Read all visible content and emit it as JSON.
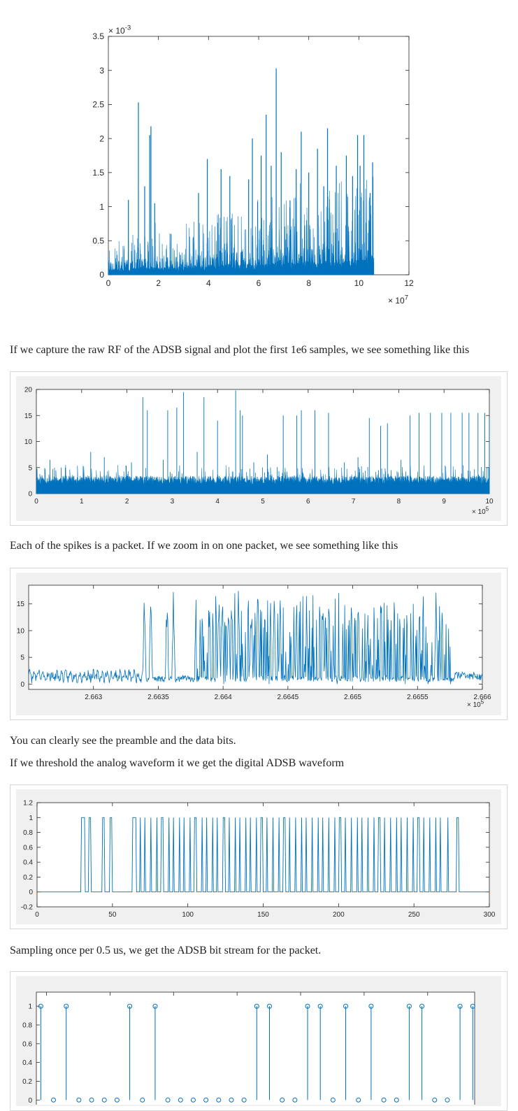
{
  "page": {
    "paragraphs": [
      "If we capture the raw RF of the ADSB signal and plot the first 1e6 samples, we see something like this",
      "Each of the spikes is a packet. If we zoom in on one packet, we see something like this",
      "You can clearly see the preamble and the data bits.",
      "If we threshold the analog waveform it we get the digital ADSB waveform",
      "Sampling once per 0.5 us, we get the ADSB bit stream for the packet."
    ]
  },
  "colors": {
    "series": "#0072bd",
    "axis": "#262626",
    "panel_bg": "#f0f0f0",
    "panel_border": "#d6d6d6",
    "text": "#222222"
  },
  "chart_data": [
    {
      "type": "area",
      "xlim": [
        0,
        12
      ],
      "ylim": [
        0,
        3.5
      ],
      "x_exponent": "10^7",
      "y_exponent": "10^-3",
      "x_ticks": [
        "0",
        "2",
        "4",
        "6",
        "8",
        "10",
        "12"
      ],
      "y_ticks": [
        "0",
        "0.5",
        "1",
        "1.5",
        "2",
        "2.5",
        "3",
        "3.5"
      ],
      "x_exponent_label": "× 10",
      "x_exponent_power": "7",
      "y_exponent_label": "× 10",
      "y_exponent_power": "-3",
      "grid": false,
      "series": [
        {
          "x_end": 10.6,
          "baseline": 0.12,
          "spikes": [
            [
              1.2,
              2.53
            ],
            [
              1.45,
              1.3
            ],
            [
              1.65,
              2.05
            ],
            [
              1.7,
              2.18
            ],
            [
              1.85,
              1.05
            ],
            [
              0.8,
              1.1
            ],
            [
              2.5,
              0.6
            ],
            [
              3.6,
              1.2
            ],
            [
              3.95,
              1.7
            ],
            [
              4.5,
              1.55
            ],
            [
              4.85,
              1.45
            ],
            [
              5.6,
              1.4
            ],
            [
              5.75,
              2.0
            ],
            [
              6.1,
              1.75
            ],
            [
              6.3,
              2.35
            ],
            [
              6.5,
              1.6
            ],
            [
              6.7,
              3.03
            ],
            [
              6.9,
              1.8
            ],
            [
              7.5,
              1.55
            ],
            [
              7.7,
              2.1
            ],
            [
              8.0,
              1.5
            ],
            [
              8.35,
              1.85
            ],
            [
              8.6,
              1.3
            ],
            [
              8.75,
              2.15
            ],
            [
              9.1,
              1.6
            ],
            [
              9.5,
              1.75
            ],
            [
              9.75,
              1.45
            ],
            [
              9.95,
              2.05
            ],
            [
              10.05,
              1.6
            ],
            [
              10.2,
              2.05
            ],
            [
              10.45,
              1.2
            ],
            [
              10.55,
              1.65
            ]
          ]
        }
      ]
    },
    {
      "type": "area",
      "xlim": [
        0,
        10
      ],
      "ylim": [
        0,
        20
      ],
      "x_exponent": "10^5",
      "x_ticks": [
        "0",
        "1",
        "2",
        "3",
        "4",
        "5",
        "6",
        "7",
        "8",
        "9",
        "10"
      ],
      "y_ticks": [
        "0",
        "5",
        "10",
        "15",
        "20"
      ],
      "x_exponent_label": "× 10",
      "x_exponent_power": "5",
      "grid": false,
      "series": [
        {
          "baseline": 2.6,
          "spikes": [
            [
              2.35,
              18.5
            ],
            [
              2.45,
              16.0
            ],
            [
              2.9,
              16.0
            ],
            [
              3.1,
              16.5
            ],
            [
              3.25,
              19.5
            ],
            [
              3.7,
              18.5
            ],
            [
              4.0,
              14.0
            ],
            [
              4.4,
              19.8
            ],
            [
              4.5,
              16.0
            ],
            [
              4.55,
              15.0
            ],
            [
              5.45,
              15.0
            ],
            [
              5.75,
              15.0
            ],
            [
              5.85,
              16.0
            ],
            [
              6.15,
              16.0
            ],
            [
              6.45,
              15.5
            ],
            [
              7.35,
              14.5
            ],
            [
              7.6,
              13.0
            ],
            [
              7.75,
              13.5
            ],
            [
              8.25,
              15.0
            ],
            [
              8.45,
              15.5
            ],
            [
              8.7,
              15.5
            ],
            [
              8.95,
              15.5
            ],
            [
              9.15,
              15.5
            ],
            [
              9.4,
              15.5
            ],
            [
              9.55,
              15.5
            ],
            [
              9.75,
              15.5
            ],
            [
              9.9,
              15.5
            ],
            [
              10.0,
              14.5
            ],
            [
              0.3,
              6.5
            ],
            [
              0.55,
              5.0
            ],
            [
              1.2,
              8.0
            ],
            [
              1.5,
              7.0
            ],
            [
              2.1,
              6.0
            ],
            [
              2.8,
              6.5
            ],
            [
              3.55,
              8.0
            ],
            [
              4.8,
              6.0
            ],
            [
              5.1,
              7.5
            ],
            [
              6.8,
              6.0
            ],
            [
              7.1,
              7.0
            ],
            [
              8.05,
              6.5
            ]
          ]
        }
      ]
    },
    {
      "type": "line",
      "xlim": [
        2.6625,
        2.666
      ],
      "ylim": [
        -1,
        18.5
      ],
      "x_exponent": "10^5",
      "x_ticks": [
        "2.663",
        "2.6635",
        "2.664",
        "2.6645",
        "2.665",
        "2.6655",
        "2.666"
      ],
      "x_tick_values": [
        2.663,
        2.6635,
        2.664,
        2.6645,
        2.665,
        2.6655,
        2.666
      ],
      "y_ticks": [
        "0",
        "5",
        "10",
        "15"
      ],
      "y_tick_values": [
        0,
        5,
        10,
        15
      ],
      "x_exponent_label": "× 10",
      "x_exponent_power": "5",
      "grid": false,
      "packet": {
        "start": 2.66338,
        "end": 2.66578,
        "bit_period_x": 5e-05,
        "peak": 13
      }
    },
    {
      "type": "line",
      "xlim": [
        0,
        300
      ],
      "ylim": [
        -0.2,
        1.2
      ],
      "x_ticks": [
        "0",
        "50",
        "100",
        "150",
        "200",
        "250",
        "300"
      ],
      "x_tick_values": [
        0,
        50,
        100,
        150,
        200,
        250,
        300
      ],
      "y_ticks": [
        "-0.2",
        "0",
        "0.2",
        "0.4",
        "0.6",
        "0.8",
        "1",
        "1.2"
      ],
      "y_tick_values": [
        -0.2,
        0,
        0.2,
        0.4,
        0.6,
        0.8,
        1,
        1.2
      ],
      "grid": false,
      "digital_start": 30,
      "pulses": [
        [
          29,
          32
        ],
        [
          34,
          36
        ],
        [
          43,
          45
        ],
        [
          48,
          50
        ],
        [
          63,
          66
        ],
        [
          68,
          69
        ],
        [
          71,
          72
        ],
        [
          75,
          76
        ],
        [
          79,
          80
        ],
        [
          82,
          84
        ],
        [
          87,
          88
        ],
        [
          90,
          91
        ],
        [
          94,
          95
        ],
        [
          97,
          98
        ],
        [
          101,
          102
        ],
        [
          104,
          106
        ],
        [
          109,
          110
        ],
        [
          112,
          113
        ],
        [
          116,
          117
        ],
        [
          119,
          120
        ],
        [
          123,
          125
        ],
        [
          127,
          128
        ],
        [
          131,
          132
        ],
        [
          134,
          135
        ],
        [
          138,
          139
        ],
        [
          141,
          142
        ],
        [
          145,
          146
        ],
        [
          148,
          150
        ],
        [
          152,
          153
        ],
        [
          156,
          157
        ],
        [
          160,
          161
        ],
        [
          163,
          165
        ],
        [
          167,
          168
        ],
        [
          171,
          172
        ],
        [
          175,
          176
        ],
        [
          178,
          179
        ],
        [
          182,
          183
        ],
        [
          186,
          187
        ],
        [
          189,
          190
        ],
        [
          193,
          194
        ],
        [
          197,
          198
        ],
        [
          200,
          202
        ],
        [
          204,
          205
        ],
        [
          208,
          209
        ],
        [
          212,
          213
        ],
        [
          215,
          216
        ],
        [
          219,
          220
        ],
        [
          223,
          224
        ],
        [
          226,
          228
        ],
        [
          230,
          231
        ],
        [
          234,
          235
        ],
        [
          238,
          239
        ],
        [
          241,
          242
        ],
        [
          245,
          246
        ],
        [
          249,
          250
        ],
        [
          252,
          254
        ],
        [
          256,
          257
        ],
        [
          260,
          261
        ],
        [
          264,
          265
        ],
        [
          267,
          268
        ],
        [
          272,
          273
        ],
        [
          278,
          280
        ]
      ]
    },
    {
      "type": "scatter",
      "xlim": [
        0,
        34.5
      ],
      "ylim": [
        -0.05,
        1.15
      ],
      "y_ticks": [
        "0",
        "0.2",
        "0.4",
        "0.6",
        "0.8",
        "1"
      ],
      "y_tick_values": [
        0,
        0.2,
        0.4,
        0.6,
        0.8,
        1
      ],
      "grid": false,
      "bits": [
        1,
        0,
        1,
        0,
        0,
        0,
        0,
        1,
        0,
        1,
        0,
        0,
        0,
        0,
        0,
        0,
        0,
        1,
        1,
        0,
        0,
        1,
        1,
        0,
        1,
        0,
        1,
        0,
        0,
        1,
        1,
        0,
        0,
        1,
        1
      ]
    }
  ]
}
